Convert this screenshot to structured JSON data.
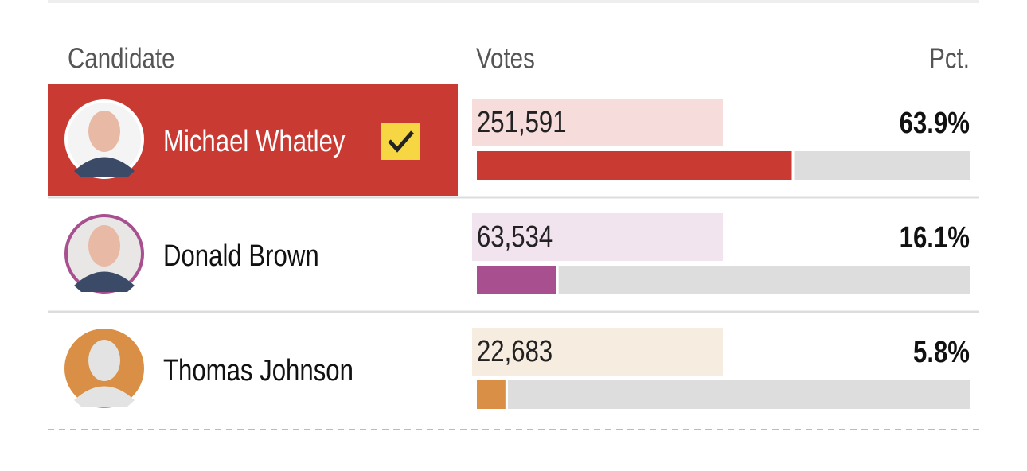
{
  "table": {
    "headers": [
      "Candidate",
      "Votes",
      "Pct."
    ],
    "rows": [
      {
        "name": "Michael Whatley",
        "votes": "251,591",
        "pct": 63.9,
        "pct_label": "63.9%",
        "winner": true,
        "color": "#c93a33",
        "light": "#f7dcdc"
      },
      {
        "name": "Donald Brown",
        "votes": "63,534",
        "pct": 16.1,
        "pct_label": "16.1%",
        "winner": false,
        "color": "#a8508f",
        "light": "#f1e4ef"
      },
      {
        "name": "Thomas Johnson",
        "votes": "22,683",
        "pct": 5.8,
        "pct_label": "5.8%",
        "winner": false,
        "color": "#d98f45",
        "light": "#f7ece0"
      }
    ]
  }
}
